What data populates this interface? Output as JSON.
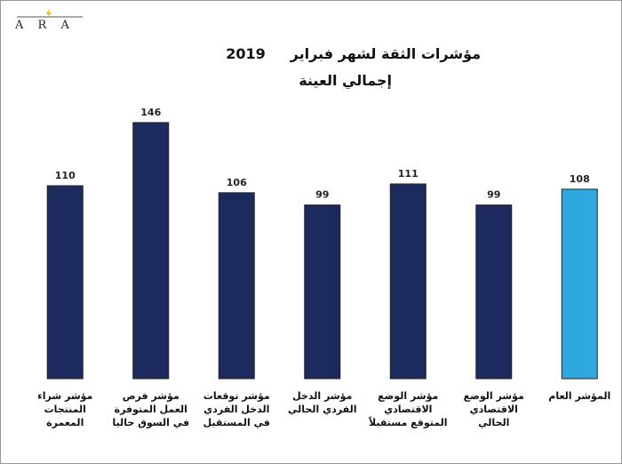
{
  "logo": "A R A",
  "chart_data": {
    "type": "bar",
    "title": "مؤشرات الثقة لشهر فبراير     2019",
    "subtitle": "إجمالي العينة",
    "categories": [
      "مؤشر شراء المنتجات المعمرة",
      "مؤشر فرص العمل المتوفرة في السوق حاليا",
      "مؤشر توقعات الدخل الفردي في المستقبل",
      "مؤشر الدخل الفردي الحالي",
      "مؤشر الوضع الاقتصادي المتوقع مستقبلاً",
      "مؤشر الوضع الاقتصادي الحالي",
      "المؤشر العام"
    ],
    "values": [
      110,
      146,
      106,
      99,
      111,
      99,
      108
    ],
    "colors": [
      "#1c2a5e",
      "#1c2a5e",
      "#1c2a5e",
      "#1c2a5e",
      "#1c2a5e",
      "#1c2a5e",
      "#2fa8e0"
    ],
    "ylim": [
      0,
      150
    ]
  }
}
